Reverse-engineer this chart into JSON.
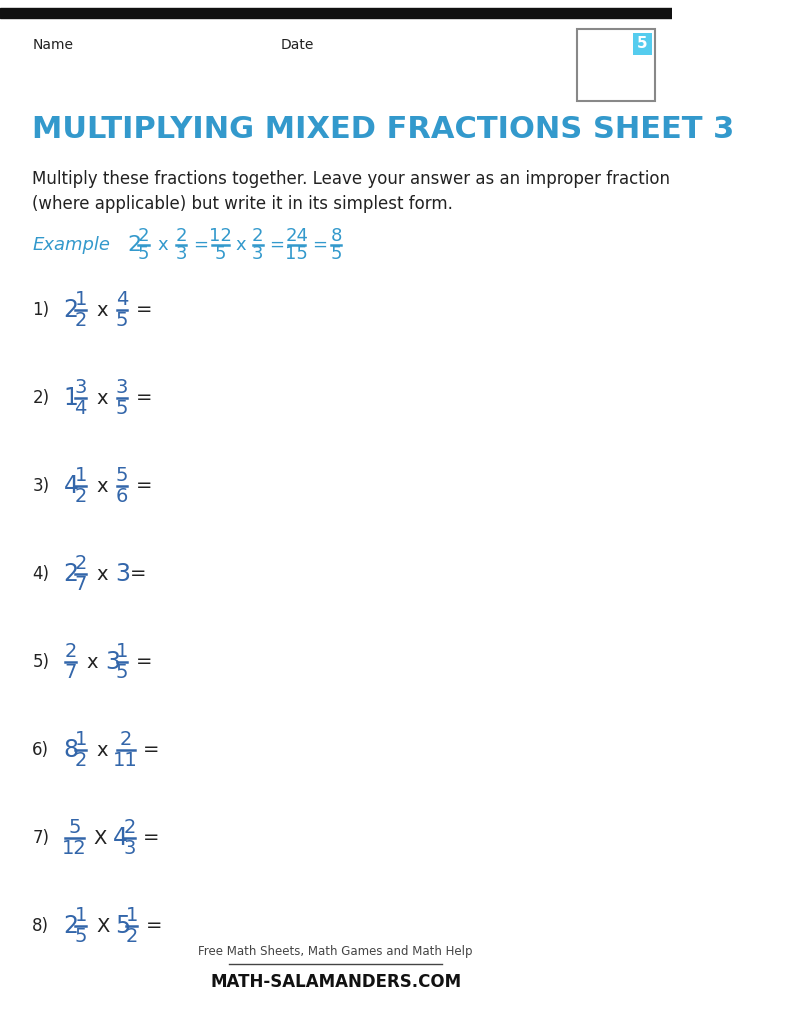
{
  "title": "MULTIPLYING MIXED FRACTIONS SHEET 3",
  "title_color": "#3399cc",
  "name_label": "Name",
  "date_label": "Date",
  "instruction1": "Multiply these fractions together. Leave your answer as an improper fraction",
  "instruction2": "(where applicable) but write it in its simplest form.",
  "example_color": "#3399cc",
  "frac_color": "#3366aa",
  "black_color": "#222222",
  "bg_color": "#ffffff",
  "top_bar_color": "#111111",
  "problems": [
    {
      "num": "1)",
      "whole1": "2",
      "n1": "1",
      "d1": "2",
      "op": "x",
      "whole2": "",
      "n2": "4",
      "d2": "5"
    },
    {
      "num": "2)",
      "whole1": "1",
      "n1": "3",
      "d1": "4",
      "op": "x",
      "whole2": "",
      "n2": "3",
      "d2": "5"
    },
    {
      "num": "3)",
      "whole1": "4",
      "n1": "1",
      "d1": "2",
      "op": "x",
      "whole2": "",
      "n2": "5",
      "d2": "6"
    },
    {
      "num": "4)",
      "whole1": "2",
      "n1": "2",
      "d1": "7",
      "op": "x",
      "whole2": "3",
      "n2": "",
      "d2": ""
    },
    {
      "num": "5)",
      "whole1": "",
      "n1": "2",
      "d1": "7",
      "op": "x",
      "whole2": "3",
      "n2": "1",
      "d2": "5"
    },
    {
      "num": "6)",
      "whole1": "8",
      "n1": "1",
      "d1": "2",
      "op": "x",
      "whole2": "",
      "n2": "2",
      "d2": "11"
    },
    {
      "num": "7)",
      "whole1": "",
      "n1": "5",
      "d1": "12",
      "op": "X",
      "whole2": "4",
      "n2": "2",
      "d2": "3"
    },
    {
      "num": "8)",
      "whole1": "2",
      "n1": "1",
      "d1": "5",
      "op": "X",
      "whole2": "5",
      "n2": "1",
      "d2": "2"
    }
  ],
  "ex_whole1": "2",
  "ex_n1": "2",
  "ex_d1": "5",
  "ex_n2": "2",
  "ex_d2": "3",
  "ex_n3": "12",
  "ex_d3": "5",
  "ex_n4": "2",
  "ex_d4": "3",
  "ex_n5": "24",
  "ex_d5": "15",
  "ex_n6": "8",
  "ex_d6": "5"
}
